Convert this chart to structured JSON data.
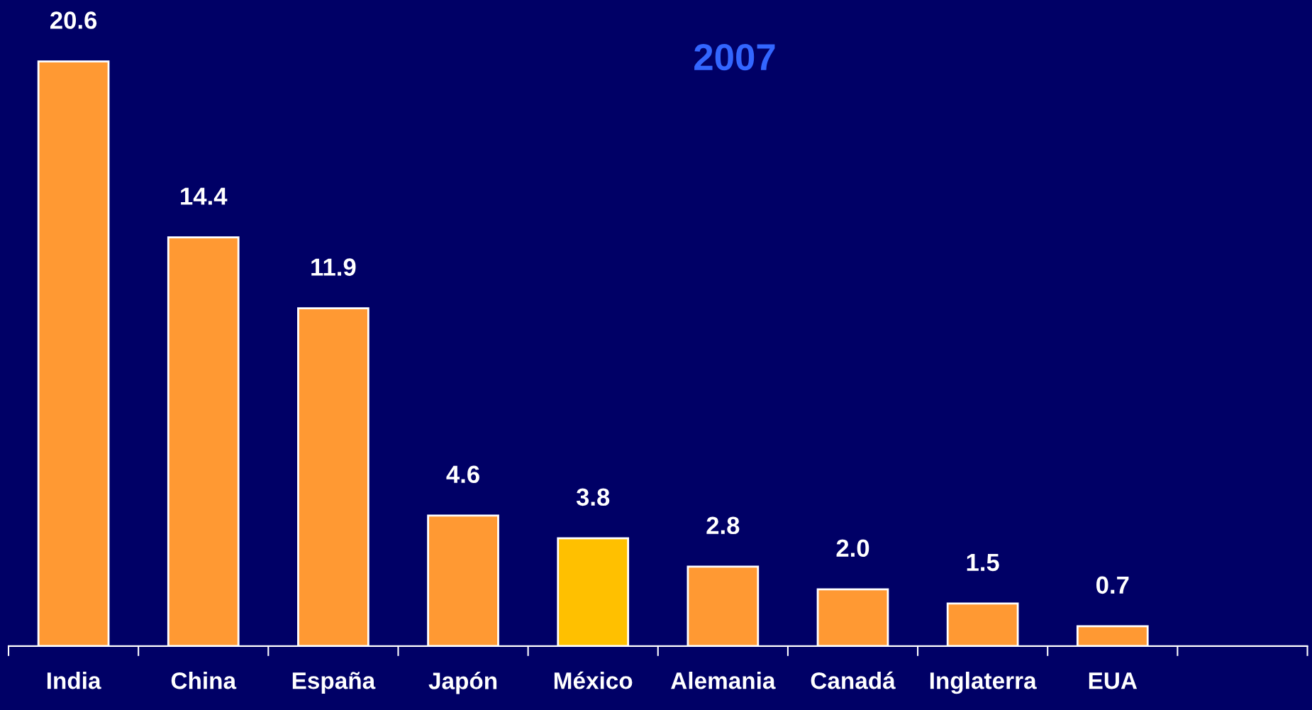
{
  "chart_data": {
    "type": "bar",
    "title": "2007",
    "categories": [
      "India",
      "China",
      "España",
      "Japón",
      "México",
      "Alemania",
      "Canadá",
      "Inglaterra",
      "EUA"
    ],
    "values": [
      20.6,
      14.4,
      11.9,
      4.6,
      3.8,
      2.8,
      2.0,
      1.5,
      0.7
    ],
    "colors": [
      "#ff9933",
      "#ff9933",
      "#ff9933",
      "#ff9933",
      "#ffc000",
      "#ff9933",
      "#ff9933",
      "#ff9933",
      "#ff9933"
    ],
    "value_labels": [
      "20.6",
      "14.4",
      "11.9",
      "4.6",
      "3.8",
      "2.8",
      "2.0",
      "1.5",
      "0.7"
    ],
    "grid": false,
    "legend": false
  }
}
